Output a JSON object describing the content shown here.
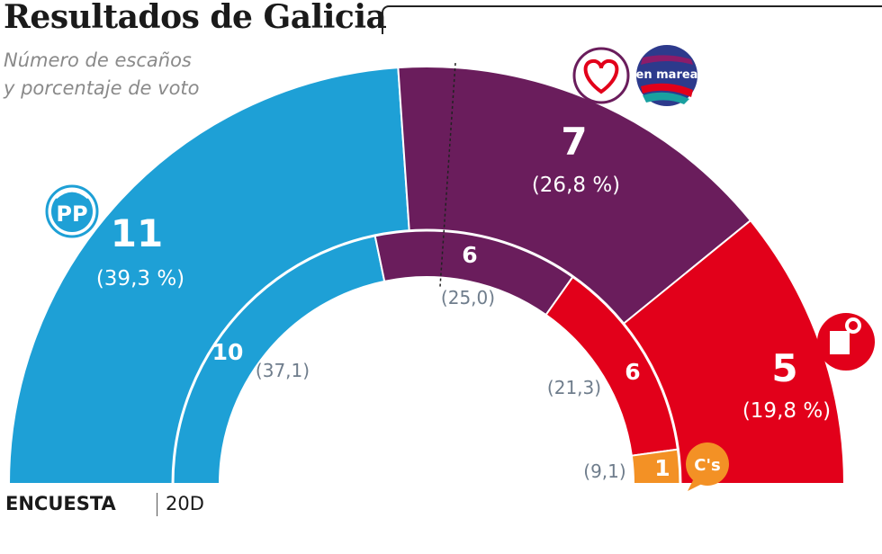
{
  "header": {
    "title": "Resultados de Galicia",
    "subtitle_line1": "Número de escaños",
    "subtitle_line2": "y porcentaje de voto"
  },
  "footer": {
    "outer_label": "ENCUESTA",
    "inner_label": "20D"
  },
  "colors": {
    "PP": "#1ea0d6",
    "EnMarea": "#6a1d5c",
    "PSOE": "#e2001a",
    "Cs": "#f39125"
  },
  "chart_data": {
    "type": "semicircle-parliament",
    "title": "Resultados de Galicia",
    "subtitle": "Número de escaños y porcentaje de voto",
    "total_seats": 23,
    "series": [
      {
        "name": "ENCUESTA",
        "ring": "outer",
        "parties": [
          {
            "party": "PP",
            "seats": 11,
            "seats_label": "11",
            "pct": 39.3,
            "pct_label": "(39,3 %)"
          },
          {
            "party": "En Marea",
            "seats": 7,
            "seats_label": "7",
            "pct": 26.8,
            "pct_label": "(26,8 %)"
          },
          {
            "party": "PSOE",
            "seats": 5,
            "seats_label": "5",
            "pct": 19.8,
            "pct_label": "(19,8 %)"
          }
        ]
      },
      {
        "name": "20D",
        "ring": "inner",
        "parties": [
          {
            "party": "PP",
            "seats": 10,
            "seats_label": "10",
            "pct": 37.1,
            "pct_label": "(37,1)"
          },
          {
            "party": "En Marea",
            "seats": 6,
            "seats_label": "6",
            "pct": 25.0,
            "pct_label": "(25,0)"
          },
          {
            "party": "PSOE",
            "seats": 6,
            "seats_label": "6",
            "pct": 21.3,
            "pct_label": "(21,3)"
          },
          {
            "party": "Cs",
            "seats": 1,
            "seats_label": "1",
            "pct": 9.1,
            "pct_label": "(9,1)"
          }
        ]
      }
    ],
    "logos": {
      "PP": "PP",
      "EnMarea": "en marea",
      "Cs": "C's"
    }
  }
}
